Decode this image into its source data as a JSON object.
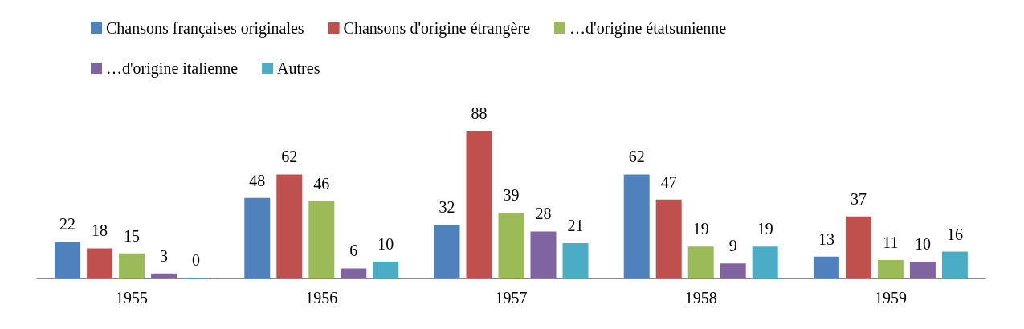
{
  "chart_data": {
    "type": "bar",
    "categories": [
      "1955",
      "1956",
      "1957",
      "1958",
      "1959"
    ],
    "series": [
      {
        "name": "Chansons françaises originales",
        "color": "#4f81bd",
        "values": [
          22,
          48,
          32,
          62,
          13
        ]
      },
      {
        "name": "Chansons d'origine étrangère",
        "color": "#c0504d",
        "values": [
          18,
          62,
          88,
          47,
          37
        ]
      },
      {
        "name": "…d'origine étatsunienne",
        "color": "#9bbb59",
        "values": [
          15,
          46,
          39,
          19,
          11
        ]
      },
      {
        "name": "…d'origine italienne",
        "color": "#8064a2",
        "values": [
          3,
          6,
          28,
          9,
          10
        ]
      },
      {
        "name": "Autres",
        "color": "#4bacc6",
        "values": [
          0,
          10,
          21,
          19,
          16
        ]
      }
    ],
    "data_labels": true,
    "legend": "top",
    "grid": false
  }
}
